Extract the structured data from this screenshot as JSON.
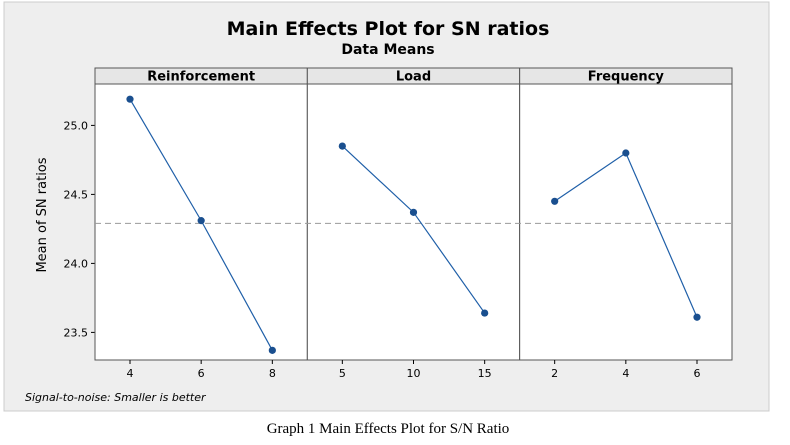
{
  "chart_data": {
    "type": "line",
    "title": "Main Effects Plot for SN ratios",
    "subtitle": "Data Means",
    "ylabel": "Mean of SN ratios",
    "ylim": [
      23.3,
      25.3
    ],
    "yticks": [
      "23.5",
      "24.0",
      "24.5",
      "25.0"
    ],
    "reference_line": 24.29,
    "footnote": "Signal-to-noise: Smaller is better",
    "panels": [
      {
        "name": "Reinforcement",
        "x": [
          "4",
          "6",
          "8"
        ],
        "values": [
          25.19,
          24.31,
          23.37
        ]
      },
      {
        "name": "Load",
        "x": [
          "5",
          "10",
          "15"
        ],
        "values": [
          24.85,
          24.37,
          23.64
        ]
      },
      {
        "name": "Frequency",
        "x": [
          "2",
          "4",
          "6"
        ],
        "values": [
          24.45,
          24.8,
          23.61
        ]
      }
    ],
    "colors": {
      "line": "#1f5fa8",
      "marker": "#1a4f8f",
      "reference": "#999999",
      "background": "#eeeeee",
      "grid_panel": "#ffffff"
    }
  },
  "caption": "Graph 1 Main Effects Plot for S/N Ratio"
}
